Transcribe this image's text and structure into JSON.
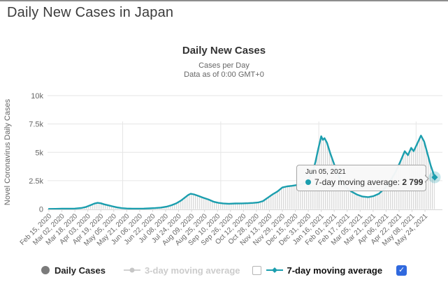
{
  "page": {
    "title": "Daily New Cases in Japan"
  },
  "chart": {
    "title": "Daily New Cases",
    "subtitle_line1": "Cases per Day",
    "subtitle_line2": "Data as of 0:00 GMT+0",
    "y_axis_title": "Novel Coronavirus Daily Cases"
  },
  "tooltip": {
    "date": "Jun 05, 2021",
    "series_label": "7-day moving average: ",
    "value": "2 799"
  },
  "legend": {
    "daily_cases_label": "Daily Cases",
    "ma3_label": "3-day moving average",
    "ma7_label": "7-day moving average",
    "ma3_checkbox_checked": false,
    "ma7_checkbox_checked": true
  },
  "icons": {
    "check": "✓"
  },
  "colors": {
    "line": "#1b9eae",
    "marker_halo": "rgba(27,158,174,0.25)",
    "daily_cases_dot": "#7b7b7b",
    "disabled_legend": "#cccccc",
    "checkbox_checked_bg": "#3069de",
    "grid": "#e6e6e6",
    "axis_text": "#666666",
    "axis_line": "#d6d6d6",
    "bars_fill": "#dadada"
  },
  "chart_data": {
    "type": "line",
    "title": "Daily New Cases",
    "subtitle": [
      "Cases per Day",
      "Data as of 0:00 GMT+0"
    ],
    "ylabel": "Novel Coronavirus Daily Cases",
    "ylim": [
      0,
      10000
    ],
    "y_tick_values": [
      0,
      2500,
      5000,
      7500,
      10000
    ],
    "y_tick_labels": [
      "0",
      "2.5k",
      "5k",
      "7.5k",
      "10k"
    ],
    "x_unit": "days since Feb 15, 2020",
    "x_tick_interval_days": 16,
    "x_tick_labels": [
      "Feb 15, 2020",
      "Mar 02, 2020",
      "Mar 18, 2020",
      "Apr 03, 2020",
      "Apr 19, 2020",
      "May 05, 2020",
      "May 21, 2020",
      "Jun 06, 2020",
      "Jun 22, 2020",
      "Jul 08, 2020",
      "Jul 24, 2020",
      "Aug 09, 2020",
      "Aug 25, 2020",
      "Sep 10, 2020",
      "Sep 26, 2020",
      "Oct 12, 2020",
      "Oct 28, 2020",
      "Nov 13, 2020",
      "Nov 29, 2020",
      "Dec 15, 2020",
      "Dec 31, 2020",
      "Jan 16, 2021",
      "Feb 01, 2021",
      "Feb 17, 2021",
      "Mar 05, 2021",
      "Mar 21, 2021",
      "Apr 06, 2021",
      "Apr 22, 2021",
      "May 08, 2021",
      "May 24, 2021"
    ],
    "legend_entries": [
      "Daily Cases",
      "3-day moving average",
      "7-day moving average"
    ],
    "grid": true,
    "series": [
      {
        "name": "7-day moving average",
        "color": "#1b9eae",
        "points_day_value": [
          [
            0,
            10
          ],
          [
            8,
            18
          ],
          [
            16,
            28
          ],
          [
            24,
            38
          ],
          [
            32,
            45
          ],
          [
            40,
            90
          ],
          [
            46,
            190
          ],
          [
            52,
            360
          ],
          [
            56,
            480
          ],
          [
            60,
            545
          ],
          [
            64,
            510
          ],
          [
            68,
            420
          ],
          [
            73,
            330
          ],
          [
            78,
            245
          ],
          [
            84,
            150
          ],
          [
            90,
            80
          ],
          [
            96,
            50
          ],
          [
            103,
            38
          ],
          [
            110,
            40
          ],
          [
            117,
            45
          ],
          [
            124,
            62
          ],
          [
            131,
            88
          ],
          [
            138,
            130
          ],
          [
            145,
            210
          ],
          [
            151,
            330
          ],
          [
            157,
            500
          ],
          [
            163,
            750
          ],
          [
            168,
            1030
          ],
          [
            172,
            1250
          ],
          [
            175,
            1350
          ],
          [
            179,
            1290
          ],
          [
            184,
            1170
          ],
          [
            190,
            1010
          ],
          [
            197,
            840
          ],
          [
            203,
            650
          ],
          [
            209,
            545
          ],
          [
            215,
            500
          ],
          [
            222,
            470
          ],
          [
            230,
            490
          ],
          [
            238,
            500
          ],
          [
            246,
            515
          ],
          [
            252,
            540
          ],
          [
            258,
            580
          ],
          [
            264,
            700
          ],
          [
            270,
            1000
          ],
          [
            276,
            1300
          ],
          [
            282,
            1550
          ],
          [
            288,
            1900
          ],
          [
            294,
            2000
          ],
          [
            300,
            2050
          ],
          [
            306,
            2120
          ],
          [
            312,
            2180
          ],
          [
            316,
            2400
          ],
          [
            321,
            2750
          ],
          [
            326,
            3400
          ],
          [
            329,
            4200
          ],
          [
            332,
            5200
          ],
          [
            336,
            6420
          ],
          [
            338,
            6100
          ],
          [
            340,
            6250
          ],
          [
            343,
            5850
          ],
          [
            347,
            4950
          ],
          [
            351,
            4150
          ],
          [
            356,
            3150
          ],
          [
            361,
            2400
          ],
          [
            367,
            1900
          ],
          [
            373,
            1550
          ],
          [
            380,
            1280
          ],
          [
            387,
            1100
          ],
          [
            394,
            1050
          ],
          [
            400,
            1130
          ],
          [
            407,
            1350
          ],
          [
            414,
            1800
          ],
          [
            421,
            2450
          ],
          [
            428,
            3300
          ],
          [
            434,
            4250
          ],
          [
            439,
            5100
          ],
          [
            443,
            4750
          ],
          [
            447,
            5400
          ],
          [
            450,
            5100
          ],
          [
            454,
            5700
          ],
          [
            459,
            6480
          ],
          [
            463,
            5950
          ],
          [
            467,
            4900
          ],
          [
            471,
            3850
          ],
          [
            476,
            2799
          ]
        ]
      }
    ],
    "highlight_point": {
      "date": "Jun 05, 2021",
      "day": 476,
      "value": 2799
    }
  }
}
